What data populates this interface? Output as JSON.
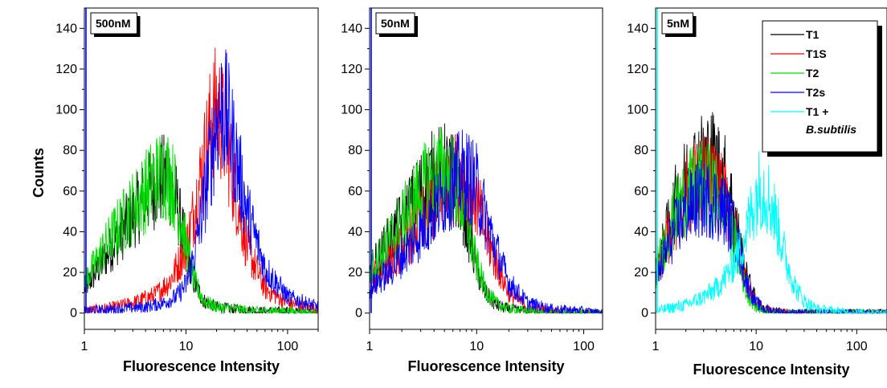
{
  "ylabel": "Counts",
  "chart_data": [
    {
      "type": "line",
      "panel_label": "500nM",
      "xlabel": "Fluorescence Intensity",
      "xscale": "log",
      "xlim": [
        1,
        200
      ],
      "ylim": [
        -8,
        150
      ],
      "xticks": [
        1,
        10,
        100
      ],
      "xtick_labels": [
        "1",
        "10",
        "100"
      ],
      "yticks": [
        0,
        20,
        40,
        60,
        80,
        100,
        120,
        140
      ],
      "ytick_labels": [
        "0",
        "20",
        "40",
        "60",
        "80",
        "100",
        "120",
        "140"
      ],
      "series": [
        {
          "color": "#000000",
          "x": [
            1,
            1.5,
            2,
            3,
            4,
            5,
            6,
            7,
            8,
            10,
            12,
            15,
            20,
            30,
            50,
            100,
            200
          ],
          "y": [
            12,
            25,
            35,
            48,
            57,
            63,
            66,
            64,
            55,
            32,
            15,
            6,
            3,
            2,
            1,
            1,
            0
          ]
        },
        {
          "color": "#ff0000",
          "x": [
            1,
            2,
            3,
            5,
            7,
            10,
            12,
            15,
            18,
            20,
            22,
            25,
            30,
            40,
            60,
            100,
            200
          ],
          "y": [
            1,
            3,
            5,
            9,
            16,
            32,
            50,
            75,
            95,
            100,
            96,
            85,
            62,
            32,
            12,
            5,
            2
          ]
        },
        {
          "color": "#00dd00",
          "x": [
            1,
            1.5,
            2,
            3,
            4,
            5,
            6,
            7,
            8,
            10,
            12,
            15,
            20,
            30,
            50,
            100,
            200
          ],
          "y": [
            15,
            30,
            40,
            52,
            60,
            66,
            69,
            67,
            58,
            34,
            16,
            6,
            3,
            2,
            1,
            1,
            0
          ]
        },
        {
          "color": "#0000ff",
          "x": [
            1,
            2,
            4,
            6,
            8,
            10,
            12,
            15,
            18,
            20,
            22,
            25,
            30,
            40,
            60,
            100,
            200
          ],
          "y": [
            1,
            2,
            3,
            5,
            8,
            14,
            28,
            55,
            80,
            95,
            100,
            97,
            80,
            50,
            22,
            8,
            3
          ]
        }
      ]
    },
    {
      "type": "line",
      "panel_label": "50nM",
      "xlabel": "Fluorescence Intensity",
      "xscale": "log",
      "xlim": [
        1,
        150
      ],
      "ylim": [
        -8,
        150
      ],
      "xticks": [
        1,
        10,
        100
      ],
      "xtick_labels": [
        "1",
        "10",
        "100"
      ],
      "yticks": [
        0,
        20,
        40,
        60,
        80,
        100,
        120,
        140
      ],
      "ytick_labels": [
        "0",
        "20",
        "40",
        "60",
        "80",
        "100",
        "120",
        "140"
      ],
      "series": [
        {
          "color": "#000000",
          "x": [
            1,
            1.5,
            2,
            3,
            4,
            5,
            6,
            7,
            8,
            10,
            12,
            15,
            20,
            30,
            50,
            100,
            150
          ],
          "y": [
            20,
            35,
            45,
            60,
            68,
            70,
            66,
            58,
            45,
            22,
            10,
            4,
            2,
            1,
            0,
            0,
            0
          ]
        },
        {
          "color": "#ff0000",
          "x": [
            1,
            1.5,
            2,
            3,
            4,
            5,
            6,
            7,
            8,
            10,
            12,
            15,
            20,
            30,
            50,
            100,
            150
          ],
          "y": [
            15,
            25,
            32,
            45,
            55,
            62,
            66,
            68,
            66,
            55,
            40,
            25,
            10,
            3,
            1,
            0,
            0
          ]
        },
        {
          "color": "#00dd00",
          "x": [
            1,
            1.5,
            2,
            3,
            4,
            5,
            6,
            7,
            8,
            10,
            12,
            15,
            20,
            30,
            50,
            100,
            150
          ],
          "y": [
            20,
            35,
            45,
            60,
            68,
            70,
            66,
            57,
            45,
            24,
            12,
            5,
            2,
            1,
            0,
            0,
            0
          ]
        },
        {
          "color": "#0000ff",
          "x": [
            1,
            1.5,
            2,
            3,
            4,
            5,
            6,
            7,
            8,
            10,
            12,
            15,
            20,
            30,
            50,
            100,
            150
          ],
          "y": [
            12,
            20,
            28,
            40,
            50,
            58,
            64,
            67,
            68,
            62,
            48,
            32,
            15,
            5,
            2,
            1,
            0
          ]
        }
      ]
    },
    {
      "type": "line",
      "panel_label": "5nM",
      "xlabel": "Fluorescence Intensity",
      "xscale": "log",
      "xlim": [
        1,
        200
      ],
      "ylim": [
        -8,
        150
      ],
      "xticks": [
        1,
        10,
        100
      ],
      "xtick_labels": [
        "1",
        "10",
        "100"
      ],
      "yticks": [
        0,
        20,
        40,
        60,
        80,
        100,
        120,
        140
      ],
      "ytick_labels": [
        "0",
        "20",
        "40",
        "60",
        "80",
        "100",
        "120",
        "140"
      ],
      "legend_position": "top-right",
      "legend": [
        {
          "name": "T1",
          "color": "#000000"
        },
        {
          "name": "T1S",
          "color": "#ff0000"
        },
        {
          "name": "T2",
          "color": "#00dd00"
        },
        {
          "name": "T2s",
          "color": "#0000ff"
        },
        {
          "name": "T1 +",
          "name2": "B.subtilis",
          "color": "#00ffff"
        }
      ],
      "series": [
        {
          "name": "T1",
          "color": "#000000",
          "x": [
            1,
            1.3,
            1.6,
            2,
            2.5,
            3,
            3.5,
            4,
            5,
            6,
            7,
            8,
            10,
            12,
            15,
            20,
            30,
            100,
            200
          ],
          "y": [
            20,
            40,
            55,
            65,
            72,
            75,
            76,
            74,
            65,
            50,
            32,
            18,
            6,
            2,
            1,
            0,
            0,
            0,
            0
          ]
        },
        {
          "name": "T1S",
          "color": "#ff0000",
          "x": [
            1,
            1.3,
            1.6,
            2,
            2.5,
            3,
            3.5,
            4,
            5,
            6,
            7,
            8,
            10,
            12,
            15,
            20,
            30,
            100,
            200
          ],
          "y": [
            18,
            35,
            48,
            58,
            64,
            66,
            65,
            62,
            55,
            42,
            28,
            15,
            5,
            2,
            1,
            0,
            0,
            0,
            0
          ]
        },
        {
          "name": "T2",
          "color": "#00dd00",
          "x": [
            1,
            1.3,
            1.6,
            2,
            2.5,
            3,
            3.5,
            4,
            5,
            6,
            7,
            8,
            10,
            12,
            15,
            20,
            30,
            100,
            200
          ],
          "y": [
            20,
            38,
            50,
            58,
            62,
            63,
            62,
            58,
            50,
            38,
            22,
            10,
            3,
            1,
            0,
            0,
            0,
            0,
            0
          ]
        },
        {
          "name": "T2s",
          "color": "#0000ff",
          "x": [
            1,
            1.3,
            1.6,
            2,
            2.5,
            3,
            3.5,
            4,
            5,
            6,
            7,
            8,
            10,
            12,
            15,
            20,
            30,
            100,
            200
          ],
          "y": [
            15,
            32,
            42,
            50,
            55,
            56,
            56,
            54,
            50,
            40,
            28,
            15,
            5,
            2,
            1,
            0,
            0,
            0,
            0
          ]
        },
        {
          "name": "T1 + B.subtilis",
          "color": "#00ffff",
          "x": [
            1,
            2,
            3,
            4,
            5,
            6,
            7,
            8,
            9,
            10,
            11,
            12,
            13,
            15,
            18,
            20,
            25,
            30,
            40,
            60,
            100,
            200
          ],
          "y": [
            1,
            4,
            8,
            12,
            18,
            25,
            32,
            40,
            50,
            58,
            62,
            61,
            58,
            50,
            35,
            25,
            12,
            6,
            2,
            1,
            0,
            0
          ]
        }
      ]
    }
  ]
}
